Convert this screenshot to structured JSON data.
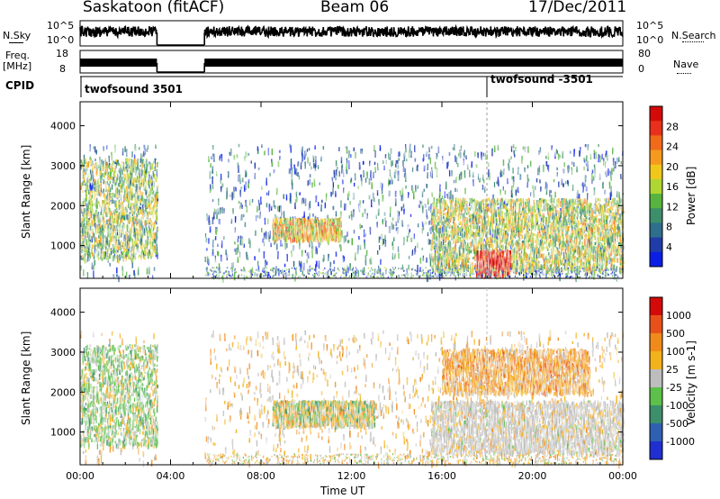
{
  "header": {
    "station": "Saskatoon (fitACF)",
    "beam": "Beam 06",
    "date": "17/Dec/2011"
  },
  "top_panels": {
    "nsky_label": "N.Sky",
    "nsearch_label": "N.Search",
    "noise_ticks_left": [
      "10^5",
      "10^0"
    ],
    "noise_ticks_right": [
      "10^5",
      "10^0"
    ],
    "freq_label_line1": "Freq.",
    "freq_label_line2": "[MHz]",
    "freq_ticks": [
      "18",
      "8"
    ],
    "nave_label": "Nave",
    "nave_ticks": [
      "80",
      "0"
    ],
    "cpid_label": "CPID",
    "cpid_segments": [
      {
        "start_hour": 0.0,
        "label": "twofsound 3501"
      },
      {
        "start_hour": 18.0,
        "label": "twofsound -3501"
      }
    ]
  },
  "chart_data": [
    {
      "type": "heatmap",
      "panel": "power",
      "ylabel": "Slant Range [km]",
      "yticks": [
        "1000",
        "2000",
        "3000",
        "4000"
      ],
      "ylim": [
        180,
        4600
      ],
      "xlim": [
        0,
        24
      ],
      "colorbar_label": "Power [dB]",
      "colorbar_ticks": [
        "28",
        "24",
        "20",
        "16",
        "12",
        "8",
        "4"
      ],
      "colors": [
        "#0b1ee6",
        "#1f3ca8",
        "#2f6e8c",
        "#3c8f6a",
        "#56b43f",
        "#b0d631",
        "#f0c81b",
        "#f59a1e",
        "#f06a1a",
        "#e8301a",
        "#d40a0a"
      ],
      "data_gaps_hours": [
        [
          3.4,
          5.5
        ]
      ],
      "regions": [
        {
          "t": [
            0.0,
            3.4
          ],
          "r": [
            700,
            3200
          ],
          "level": 0.45
        },
        {
          "t": [
            8.5,
            11.5
          ],
          "r": [
            1200,
            1700
          ],
          "level": 0.6
        },
        {
          "t": [
            15.5,
            24.0
          ],
          "r": [
            400,
            2200
          ],
          "level": 0.5
        },
        {
          "t": [
            17.5,
            19.0
          ],
          "r": [
            300,
            900
          ],
          "level": 0.95
        }
      ]
    },
    {
      "type": "heatmap",
      "panel": "velocity",
      "ylabel": "Slant Range [km]",
      "yticks": [
        "1000",
        "2000",
        "3000",
        "4000"
      ],
      "ylim": [
        180,
        4600
      ],
      "xlim": [
        0,
        24
      ],
      "xticks": [
        "00:00",
        "04:00",
        "08:00",
        "12:00",
        "16:00",
        "20:00",
        "00:00"
      ],
      "xlabel": "Time UT",
      "colorbar_label": "Velocity [m s-1]",
      "colorbar_ticks": [
        "1000",
        "500",
        "100",
        "25",
        "-25",
        "-100",
        "-500",
        "-1000"
      ],
      "colors": [
        "#1f2fd0",
        "#2f5fb0",
        "#3c8f6a",
        "#5cc04a",
        "#bdbdbd",
        "#f2b21a",
        "#f08a1a",
        "#e8501a",
        "#d40a0a"
      ],
      "data_gaps_hours": [
        [
          3.4,
          5.5
        ]
      ],
      "regions": [
        {
          "t": [
            0.0,
            3.4
          ],
          "r": [
            700,
            3200
          ],
          "class": "positive"
        },
        {
          "t": [
            8.5,
            13.0
          ],
          "r": [
            1200,
            1800
          ],
          "class": "mixed"
        },
        {
          "t": [
            15.5,
            24.0
          ],
          "r": [
            500,
            1800
          ],
          "class": "near-zero"
        },
        {
          "t": [
            16.0,
            22.5
          ],
          "r": [
            2000,
            3100
          ],
          "class": "negative"
        }
      ]
    }
  ]
}
